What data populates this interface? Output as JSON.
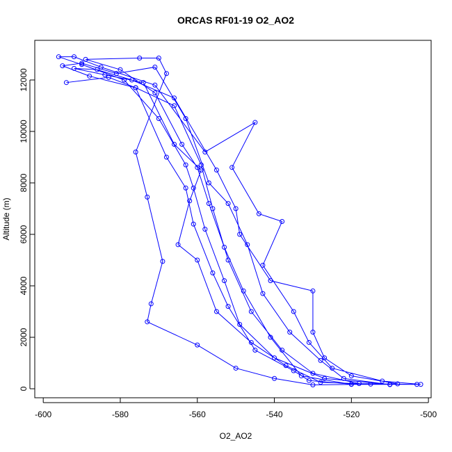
{
  "chart_data": {
    "type": "line",
    "title": "ORCAS RF01-19 O2_AO2",
    "x_label": "O2_AO2",
    "y_label": "Altitude (m)",
    "xlim": [
      -602.2,
      -499.3
    ],
    "ylim": [
      -350,
      13540
    ],
    "xticks": [
      -600,
      -580,
      -560,
      -540,
      -520,
      -500
    ],
    "yticks": [
      0,
      2000,
      4000,
      6000,
      8000,
      10000,
      12000
    ],
    "markers": true,
    "x": [
      -594,
      -583,
      -576,
      -566,
      -559,
      -556,
      -552,
      -546,
      -538,
      -530,
      -518,
      -503,
      -510,
      -527,
      -540,
      -549,
      -553,
      -558,
      -561,
      -563,
      -570,
      -579,
      -590,
      -596,
      -592,
      -585,
      -571,
      -558,
      -545,
      -551,
      -544,
      -538,
      -543,
      -535,
      -531,
      -525,
      -512,
      -502,
      -520,
      -533,
      -541,
      -548,
      -553,
      -557,
      -560,
      -564,
      -571,
      -580,
      -589,
      -575,
      -570,
      -568,
      -576,
      -573,
      -569,
      -572,
      -573,
      -560,
      -550,
      -540,
      -530,
      -515,
      -528,
      -537,
      -546,
      -555,
      -560,
      -565,
      -562,
      -559,
      -566,
      -574,
      -584,
      -592,
      -586,
      -577,
      -566,
      -555,
      -550,
      -549,
      -541,
      -530,
      -530,
      -527,
      -520,
      -508,
      -520,
      -531,
      -535,
      -545,
      -552,
      -556,
      -561,
      -563,
      -568,
      -576,
      -588,
      -595,
      -590,
      -581,
      -571,
      -563,
      -557,
      -552,
      -547,
      -543,
      -536,
      -528,
      -522,
      -510
    ],
    "series": [
      {
        "color": "#0000ff",
        "values": [
          11900,
          12100,
          11700,
          11000,
          8700,
          7000,
          5000,
          3000,
          1500,
          600,
          200,
          170,
          170,
          400,
          1200,
          2500,
          4200,
          6200,
          7800,
          8700,
          10500,
          12000,
          12600,
          12900,
          12900,
          12500,
          11800,
          9200,
          10350,
          8600,
          6800,
          6500,
          4800,
          3000,
          1800,
          800,
          300,
          170,
          170,
          500,
          2000,
          3800,
          5500,
          7200,
          8600,
          9500,
          11500,
          12400,
          12800,
          12850,
          12850,
          12250,
          9200,
          7450,
          4950,
          3300,
          2600,
          1700,
          800,
          400,
          150,
          180,
          250,
          900,
          1800,
          3000,
          5000,
          5600,
          7300,
          8500,
          9500,
          11900,
          12200,
          12450,
          12400,
          12000,
          11300,
          8500,
          7000,
          6000,
          4200,
          3800,
          2200,
          1200,
          500,
          190,
          180,
          320,
          700,
          1500,
          3200,
          4500,
          6400,
          7800,
          9000,
          11700,
          12150,
          12550,
          12650,
          12250,
          12500,
          10500,
          8000,
          7200,
          5600,
          3700,
          2200,
          1100,
          400,
          160
        ]
      }
    ]
  }
}
